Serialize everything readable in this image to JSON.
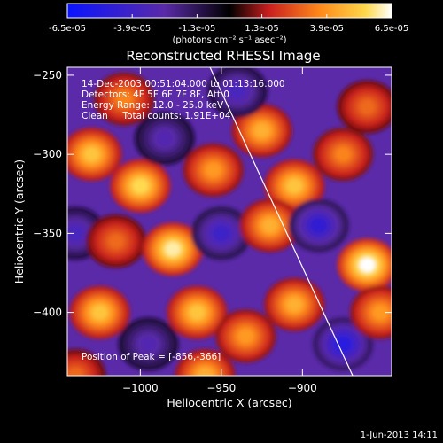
{
  "colorbar": {
    "ticks": [
      "-6.5e-05",
      "-3.9e-05",
      "-1.3e-05",
      "1.3e-05",
      "3.9e-05",
      "6.5e-05"
    ],
    "tick_values": [
      -6.5e-05,
      -3.9e-05,
      -1.3e-05,
      1.3e-05,
      3.9e-05,
      6.5e-05
    ],
    "range": [
      -6.5e-05,
      6.5e-05
    ],
    "units": "(photons cm⁻² s⁻¹ asec⁻²)",
    "colors": [
      "#0a14ff",
      "#5a2aa8",
      "#000000",
      "#c81e1e",
      "#ff8a1a",
      "#ffd84a",
      "#ffffff"
    ]
  },
  "chart_data": {
    "type": "heatmap",
    "title": "Reconstructed RHESSI Image",
    "xlabel": "Heliocentric X (arcsec)",
    "ylabel": "Heliocentric Y (arcsec)",
    "xlim": [
      -1045,
      -845
    ],
    "ylim": [
      -440,
      -245
    ],
    "x_ticks": [
      -1000,
      -950,
      -900
    ],
    "y_ticks": [
      -250,
      -300,
      -350,
      -400
    ],
    "x_tick_labels": [
      "−1000",
      "−950",
      "−900"
    ],
    "y_tick_labels": [
      "−250",
      "−300",
      "−350",
      "−400"
    ],
    "limb_line": {
      "x": [
        -957,
        -869
      ],
      "y": [
        -245,
        -440
      ]
    },
    "peak": [
      -856,
      -366
    ],
    "blobs": [
      {
        "x": -1030,
        "y": -300,
        "v": 5e-05
      },
      {
        "x": -1000,
        "y": -320,
        "v": 5.5e-05
      },
      {
        "x": -985,
        "y": -290,
        "v": -3e-05
      },
      {
        "x": -955,
        "y": -310,
        "v": 4e-05
      },
      {
        "x": -925,
        "y": -285,
        "v": 4.5e-05
      },
      {
        "x": -905,
        "y": -320,
        "v": 5e-05
      },
      {
        "x": -875,
        "y": -300,
        "v": 3.5e-05
      },
      {
        "x": -860,
        "y": -270,
        "v": 3e-05
      },
      {
        "x": -1040,
        "y": -350,
        "v": -3.5e-05
      },
      {
        "x": -1015,
        "y": -355,
        "v": 3e-05
      },
      {
        "x": -980,
        "y": -360,
        "v": 6e-05
      },
      {
        "x": -950,
        "y": -350,
        "v": -4e-05
      },
      {
        "x": -920,
        "y": -345,
        "v": 4.5e-05
      },
      {
        "x": -890,
        "y": -345,
        "v": -4.5e-05
      },
      {
        "x": -860,
        "y": -370,
        "v": 6.5e-05
      },
      {
        "x": -1025,
        "y": -400,
        "v": 5e-05
      },
      {
        "x": -995,
        "y": -420,
        "v": -3e-05
      },
      {
        "x": -965,
        "y": -400,
        "v": 5e-05
      },
      {
        "x": -935,
        "y": -415,
        "v": 4e-05
      },
      {
        "x": -905,
        "y": -395,
        "v": 4.5e-05
      },
      {
        "x": -875,
        "y": -420,
        "v": -5e-05
      },
      {
        "x": -852,
        "y": -400,
        "v": 4e-05
      },
      {
        "x": -940,
        "y": -260,
        "v": -3.5e-05
      },
      {
        "x": -1010,
        "y": -265,
        "v": 3.5e-05
      },
      {
        "x": -960,
        "y": -440,
        "v": 4.5e-05
      },
      {
        "x": -1040,
        "y": -440,
        "v": 3e-05
      }
    ]
  },
  "info": {
    "line1": "14-Dec-2003 00:51:04.000 to 01:13:16.000",
    "line2": "Detectors: 4F 5F 6F 7F 8F, Att 0",
    "line3": "Energy Range: 12.0 - 25.0 keV",
    "line4": "Clean     Total counts: 1.91E+04",
    "peak_label": "Position of Peak = [-856,-366]"
  },
  "footer": {
    "timestamp": "1-Jun-2013 14:11"
  }
}
